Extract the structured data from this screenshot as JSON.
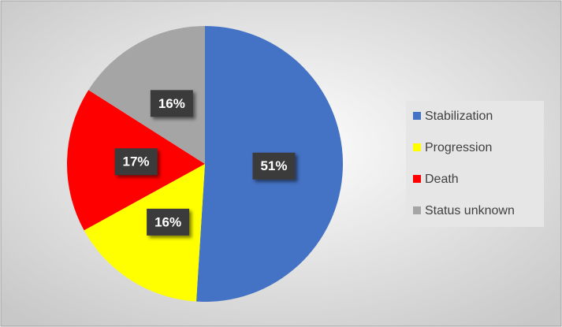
{
  "chart_data": {
    "type": "pie",
    "categories": [
      "Stabilization",
      "Progression",
      "Death",
      "Status unknown"
    ],
    "values": [
      51,
      16,
      17,
      16
    ],
    "value_labels": [
      "51%",
      "16%",
      "17%",
      "16%"
    ],
    "colors": [
      "#4472c4",
      "#ffff00",
      "#ff0000",
      "#a5a5a5"
    ],
    "legend": "right"
  }
}
